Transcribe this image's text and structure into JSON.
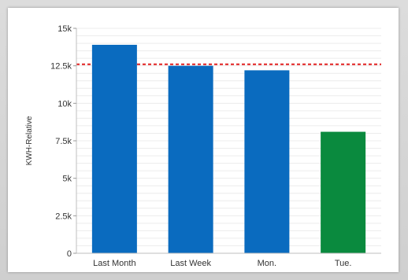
{
  "chart_data": {
    "type": "bar",
    "categories": [
      "Last Month",
      "Last Week",
      "Mon.",
      "Tue."
    ],
    "values": [
      13900,
      12500,
      12200,
      8100
    ],
    "bar_colors": [
      "#0a6bbf",
      "#0a6bbf",
      "#0a6bbf",
      "#0a8a3e"
    ],
    "ylabel": "KWH-Relative",
    "xlabel": "",
    "title": "",
    "ylim": [
      0,
      15000
    ],
    "y_ticks": [
      {
        "value": 0,
        "label": "0"
      },
      {
        "value": 2500,
        "label": "2.5k"
      },
      {
        "value": 5000,
        "label": "5k"
      },
      {
        "value": 7500,
        "label": "7.5k"
      },
      {
        "value": 10000,
        "label": "10k"
      },
      {
        "value": 12500,
        "label": "12.5k"
      },
      {
        "value": 15000,
        "label": "15k"
      }
    ],
    "reference_line": {
      "value": 12600,
      "color": "#e02020",
      "style": "dashed"
    },
    "grid": true
  }
}
